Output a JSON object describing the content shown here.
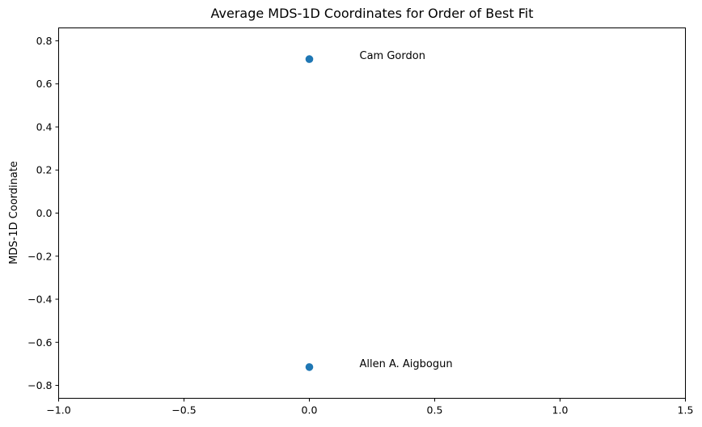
{
  "chart_data": {
    "type": "scatter",
    "title": "Average MDS-1D Coordinates for Order of Best Fit",
    "xlabel": "",
    "ylabel": "MDS-1D Coordinate",
    "xlim": [
      -1.0,
      1.5
    ],
    "ylim": [
      -0.86,
      0.86
    ],
    "grid": false,
    "x_ticks": [
      "−1.0",
      "−0.5",
      "0.0",
      "0.5",
      "1.0",
      "1.5"
    ],
    "y_ticks": [
      "−0.8",
      "−0.6",
      "−0.4",
      "−0.2",
      "0.0",
      "0.2",
      "0.4",
      "0.6",
      "0.8"
    ],
    "points": [
      {
        "x": 0.0,
        "y": 0.715,
        "label": "Cam Gordon"
      },
      {
        "x": 0.0,
        "y": -0.715,
        "label": "Allen A. Aigbogun"
      }
    ],
    "color": "#1f77b4"
  }
}
